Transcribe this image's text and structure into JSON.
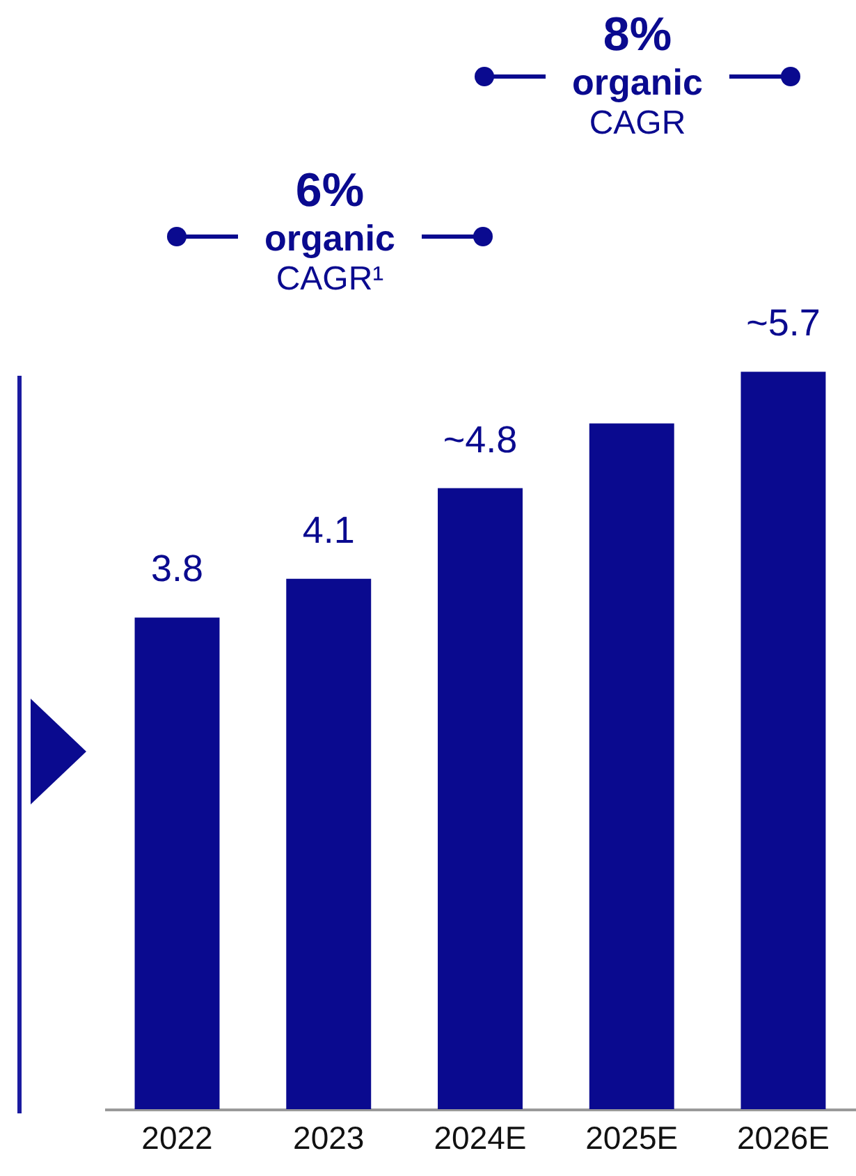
{
  "chart_data": {
    "type": "bar",
    "categories": [
      "2022",
      "2023",
      "2024E",
      "2025E",
      "2026E"
    ],
    "values": [
      3.8,
      4.1,
      4.8,
      5.3,
      5.7
    ],
    "value_labels": [
      "3.8",
      "4.1",
      "~4.8",
      null,
      "~5.7"
    ],
    "color": "#0a0a8f",
    "annotations": [
      "6% organic CAGR¹",
      "8% organic CAGR"
    ]
  }
}
